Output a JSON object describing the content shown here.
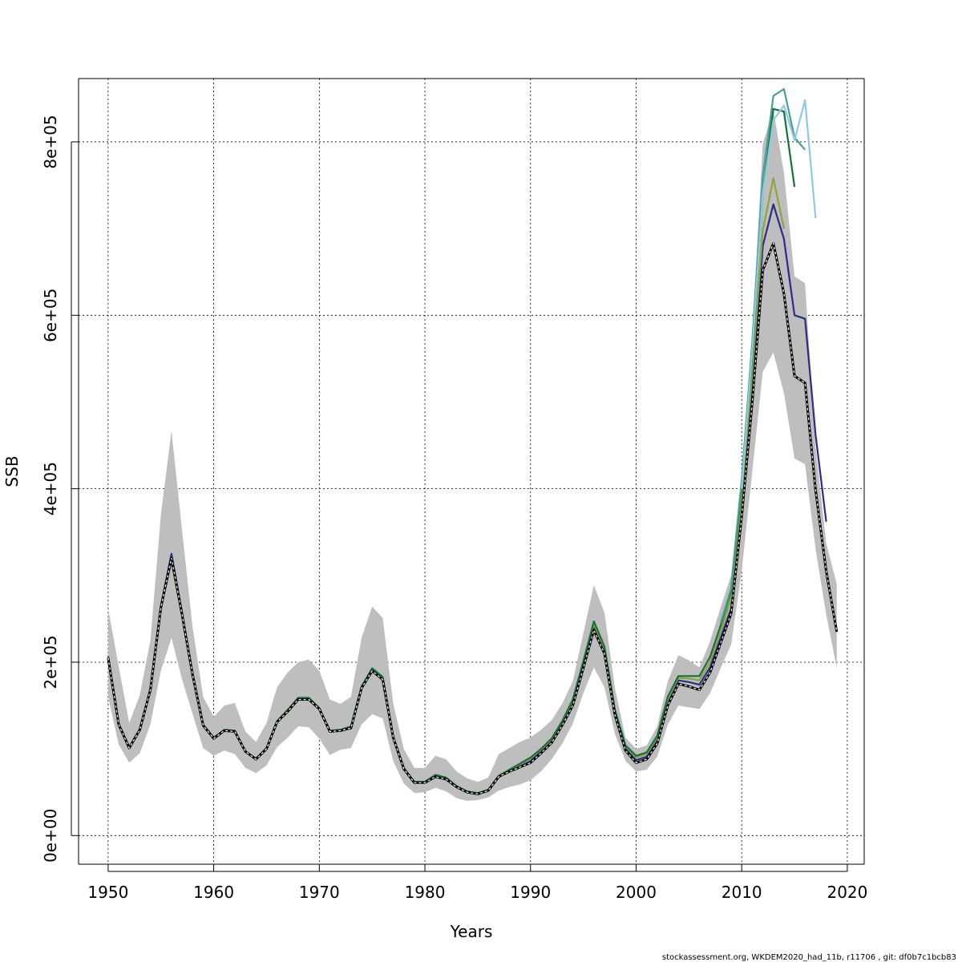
{
  "chart_data": {
    "type": "line",
    "title": "",
    "xlabel": "Years",
    "ylabel": "SSB",
    "xlim": [
      1947.2,
      2021.6
    ],
    "ylim": [
      -33000,
      873000
    ],
    "grid": true,
    "legend": "none",
    "x_ticks": [
      1950,
      1960,
      1970,
      1980,
      1990,
      2000,
      2010,
      2020
    ],
    "x_tick_labels": [
      "1950",
      "1960",
      "1970",
      "1980",
      "1990",
      "2000",
      "2010",
      "2020"
    ],
    "y_ticks": [
      0,
      200000,
      400000,
      600000,
      800000
    ],
    "y_tick_labels": [
      "0e+00",
      "2e+05",
      "4e+05",
      "6e+05",
      "8e+05"
    ],
    "confidence_band": {
      "color": "#bebebe",
      "x": [
        1950,
        1951,
        1952,
        1953,
        1954,
        1955,
        1956,
        1957,
        1958,
        1959,
        1960,
        1961,
        1962,
        1963,
        1964,
        1965,
        1966,
        1967,
        1968,
        1969,
        1970,
        1971,
        1972,
        1973,
        1974,
        1975,
        1976,
        1977,
        1978,
        1979,
        1980,
        1981,
        1982,
        1983,
        1984,
        1985,
        1986,
        1987,
        1988,
        1989,
        1990,
        1991,
        1992,
        1993,
        1994,
        1995,
        1996,
        1997,
        1998,
        1999,
        2000,
        2001,
        2002,
        2003,
        2004,
        2005,
        2006,
        2007,
        2008,
        2009,
        2010,
        2011,
        2012,
        2013,
        2014,
        2015,
        2016,
        2017,
        2018,
        2019
      ],
      "upper": [
        262000,
        195000,
        130000,
        162000,
        225000,
        370000,
        467000,
        352000,
        240000,
        160000,
        137000,
        150000,
        153000,
        120000,
        108000,
        130000,
        171000,
        188000,
        200000,
        203000,
        190000,
        157000,
        152000,
        160000,
        228000,
        264000,
        251000,
        152000,
        100000,
        78000,
        78000,
        92000,
        88000,
        74000,
        66000,
        62000,
        67000,
        94000,
        101000,
        108000,
        113000,
        122000,
        133000,
        152000,
        178000,
        233000,
        289000,
        257000,
        170000,
        113000,
        100000,
        104000,
        126000,
        178000,
        208000,
        202000,
        194000,
        224000,
        263000,
        300000,
        420000,
        580000,
        798000,
        837000,
        764000,
        645000,
        637000,
        448000,
        337000,
        290000
      ],
      "lower": [
        160000,
        105000,
        84000,
        95000,
        128000,
        190000,
        228000,
        180000,
        140000,
        101000,
        92000,
        98000,
        94000,
        78000,
        72000,
        81000,
        102000,
        113000,
        126000,
        125000,
        112000,
        93000,
        99000,
        101000,
        128000,
        140000,
        135000,
        86000,
        60000,
        49000,
        50000,
        55000,
        51000,
        43000,
        40000,
        41000,
        44000,
        52000,
        56000,
        59000,
        64000,
        74000,
        88000,
        106000,
        129000,
        164000,
        194000,
        171000,
        117000,
        86000,
        74000,
        76000,
        91000,
        128000,
        150000,
        148000,
        146000,
        164000,
        193000,
        220000,
        305000,
        420000,
        535000,
        557000,
        510000,
        435000,
        428000,
        330000,
        255000,
        193000
      ]
    },
    "series": [
      {
        "color": "#000000",
        "dashed": true,
        "x": [
          1950,
          1951,
          1952,
          1953,
          1954,
          1955,
          1956,
          1957,
          1958,
          1959,
          1960,
          1961,
          1962,
          1963,
          1964,
          1965,
          1966,
          1967,
          1968,
          1969,
          1970,
          1971,
          1972,
          1973,
          1974,
          1975,
          1976,
          1977,
          1978,
          1979,
          1980,
          1981,
          1982,
          1983,
          1984,
          1985,
          1986,
          1987,
          1988,
          1989,
          1990,
          1991,
          1992,
          1993,
          1994,
          1995,
          1996,
          1997,
          1998,
          1999,
          2000,
          2001,
          2002,
          2003,
          2004,
          2005,
          2006,
          2007,
          2008,
          2009,
          2010,
          2011,
          2012,
          2013,
          2014,
          2015,
          2016,
          2017,
          2018,
          2019
        ],
        "values": [
          205000,
          128000,
          101000,
          122000,
          168000,
          263000,
          320000,
          255000,
          185000,
          127000,
          112000,
          121000,
          120000,
          97000,
          88000,
          100000,
          131000,
          143000,
          157000,
          157000,
          146000,
          120000,
          121000,
          124000,
          170000,
          190000,
          180000,
          113000,
          77000,
          61000,
          61000,
          68000,
          65000,
          56000,
          50000,
          48000,
          52000,
          68000,
          74000,
          79000,
          84000,
          95000,
          107000,
          127000,
          150000,
          193000,
          237000,
          210000,
          139000,
          98000,
          84000,
          88000,
          106000,
          150000,
          175000,
          172000,
          168000,
          188000,
          222000,
          256000,
          368000,
          500000,
          652000,
          683000,
          625000,
          530000,
          522000,
          398000,
          305000,
          235000
        ]
      },
      {
        "color": "#2e2a8c",
        "dashed": false,
        "x": [
          1950,
          1951,
          1952,
          1953,
          1954,
          1955,
          1956,
          1957,
          1958,
          1959,
          1960,
          1961,
          1962,
          1963,
          1964,
          1965,
          1966,
          1967,
          1968,
          1969,
          1970,
          1971,
          1972,
          1973,
          1974,
          1975,
          1976,
          1977,
          1978,
          1979,
          1980,
          1981,
          1982,
          1983,
          1984,
          1985,
          1986,
          1987,
          1988,
          1989,
          1990,
          1991,
          1992,
          1993,
          1994,
          1995,
          1996,
          1997,
          1998,
          1999,
          2000,
          2001,
          2002,
          2003,
          2004,
          2005,
          2006,
          2007,
          2008,
          2009,
          2010,
          2011,
          2012,
          2013,
          2014,
          2015,
          2016,
          2017,
          2018
        ],
        "values": [
          206000,
          129000,
          102000,
          122000,
          169000,
          265000,
          325000,
          257000,
          186000,
          128000,
          113000,
          121000,
          120000,
          97000,
          88000,
          101000,
          131000,
          144000,
          158000,
          158000,
          146000,
          121000,
          121000,
          125000,
          171000,
          191000,
          181000,
          113000,
          78000,
          61000,
          61000,
          69000,
          66000,
          56000,
          50000,
          48000,
          52000,
          68000,
          75000,
          80000,
          86000,
          97000,
          109000,
          129000,
          153000,
          196000,
          240000,
          212000,
          141000,
          100000,
          87000,
          91000,
          110000,
          153000,
          179000,
          177000,
          174000,
          194000,
          228000,
          262000,
          375000,
          510000,
          680000,
          728000,
          688000,
          600000,
          596000,
          462000,
          362000
        ]
      },
      {
        "color": "#8fa33a",
        "dashed": false,
        "x": [
          1950,
          1951,
          1952,
          1953,
          1954,
          1955,
          1956,
          1957,
          1958,
          1959,
          1960,
          1961,
          1962,
          1963,
          1964,
          1965,
          1966,
          1967,
          1968,
          1969,
          1970,
          1971,
          1972,
          1973,
          1974,
          1975,
          1976,
          1977,
          1978,
          1979,
          1980,
          1981,
          1982,
          1983,
          1984,
          1985,
          1986,
          1987,
          1988,
          1989,
          1990,
          1991,
          1992,
          1993,
          1994,
          1995,
          1996,
          1997,
          1998,
          1999,
          2000,
          2001,
          2002,
          2003,
          2004,
          2005,
          2006,
          2007,
          2008,
          2009,
          2010,
          2011,
          2012,
          2013,
          2014
        ],
        "values": [
          207000,
          129000,
          102000,
          123000,
          169000,
          263000,
          316000,
          253000,
          186000,
          128000,
          112000,
          121000,
          121000,
          97000,
          88000,
          101000,
          132000,
          145000,
          158000,
          158000,
          147000,
          121000,
          121000,
          125000,
          172000,
          192000,
          182000,
          114000,
          78000,
          61000,
          62000,
          69000,
          66000,
          57000,
          50000,
          48000,
          52000,
          69000,
          75000,
          82000,
          89000,
          99000,
          111000,
          131000,
          155000,
          198000,
          244000,
          215000,
          143000,
          103000,
          90000,
          94000,
          113000,
          157000,
          182000,
          181000,
          179000,
          200000,
          235000,
          273000,
          390000,
          535000,
          698000,
          758000,
          700000
        ]
      },
      {
        "color": "#11733a",
        "dashed": false,
        "x": [
          1950,
          1951,
          1952,
          1953,
          1954,
          1955,
          1956,
          1957,
          1958,
          1959,
          1960,
          1961,
          1962,
          1963,
          1964,
          1965,
          1966,
          1967,
          1968,
          1969,
          1970,
          1971,
          1972,
          1973,
          1974,
          1975,
          1976,
          1977,
          1978,
          1979,
          1980,
          1981,
          1982,
          1983,
          1984,
          1985,
          1986,
          1987,
          1988,
          1989,
          1990,
          1991,
          1992,
          1993,
          1994,
          1995,
          1996,
          1997,
          1998,
          1999,
          2000,
          2001,
          2002,
          2003,
          2004,
          2005,
          2006,
          2007,
          2008,
          2009,
          2010,
          2011,
          2012,
          2013,
          2014,
          2015
        ],
        "values": [
          207000,
          129000,
          102000,
          123000,
          170000,
          264000,
          318000,
          254000,
          187000,
          128000,
          113000,
          122000,
          121000,
          97000,
          89000,
          101000,
          132000,
          145000,
          159000,
          159000,
          147000,
          121000,
          122000,
          126000,
          172000,
          193000,
          183000,
          114000,
          78000,
          62000,
          62000,
          70000,
          67000,
          57000,
          51000,
          49000,
          53000,
          69000,
          76000,
          83000,
          90000,
          100000,
          112000,
          132000,
          157000,
          201000,
          247000,
          218000,
          145000,
          104000,
          92000,
          96000,
          115000,
          160000,
          184000,
          184000,
          184000,
          206000,
          242000,
          282000,
          405000,
          555000,
          740000,
          838000,
          835000,
          748000
        ]
      },
      {
        "color": "#45a196",
        "dashed": false,
        "x": [
          2008,
          2009,
          2010,
          2011,
          2012,
          2013,
          2014,
          2015,
          2016
        ],
        "values": [
          245000,
          285000,
          410000,
          570000,
          760000,
          853000,
          861000,
          805000,
          791000
        ]
      },
      {
        "color": "#8ecae6",
        "dashed": false,
        "x": [
          2010,
          2011,
          2012,
          2013,
          2014,
          2015,
          2016,
          2017
        ],
        "values": [
          400000,
          560000,
          740000,
          825000,
          842000,
          802000,
          848000,
          712000
        ]
      }
    ],
    "footer": "stockassessment.org, WKDEM2020_had_11b, r11706 , git: df0b7c1bcb83"
  }
}
